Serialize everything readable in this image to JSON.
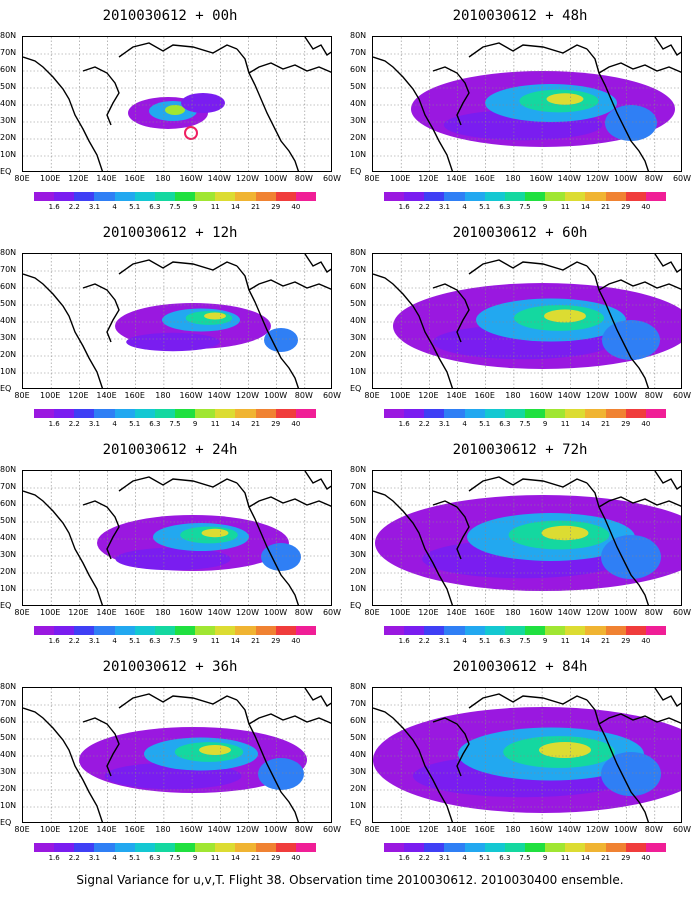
{
  "panels": [
    {
      "title": "2010030612 + 00h"
    },
    {
      "title": "2010030612 + 48h"
    },
    {
      "title": "2010030612 + 12h"
    },
    {
      "title": "2010030612 + 60h"
    },
    {
      "title": "2010030612 + 24h"
    },
    {
      "title": "2010030612 + 72h"
    },
    {
      "title": "2010030612 + 36h"
    },
    {
      "title": "2010030612 + 84h"
    }
  ],
  "lat_labels": [
    "80N",
    "70N",
    "60N",
    "50N",
    "40N",
    "30N",
    "20N",
    "10N",
    "EQ"
  ],
  "lon_labels": [
    "80E",
    "100E",
    "120E",
    "140E",
    "160E",
    "180",
    "160W",
    "140W",
    "120W",
    "100W",
    "80W",
    "60W"
  ],
  "colorbar": {
    "labels": [
      "1.6",
      "2.2",
      "3.1",
      "4",
      "5.1",
      "6.3",
      "7.5",
      "9",
      "11",
      "14",
      "21",
      "29",
      "40"
    ],
    "colors": [
      "#9a18e0",
      "#7a1df0",
      "#3f3ff5",
      "#2f7ff5",
      "#22a8f0",
      "#14c8d2",
      "#14d8a0",
      "#20e040",
      "#a0e632",
      "#dcdc32",
      "#f0b432",
      "#f08232",
      "#f03c3c",
      "#f01e96"
    ]
  },
  "caption": "Signal Variance for u,v,T. Flight 38. Observation time 2010030612. 2010030400 ensemble."
}
